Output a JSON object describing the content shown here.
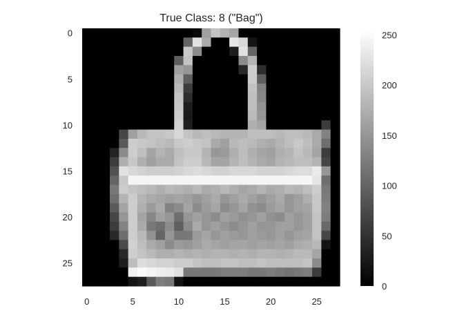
{
  "chart_data": {
    "type": "heatmap",
    "title": "True Class: 8 (\"Bag\")",
    "rows": 28,
    "cols": 28,
    "xlim": [
      -0.5,
      27.5
    ],
    "ylim": [
      27.5,
      -0.5
    ],
    "x_ticks": [
      0,
      5,
      10,
      15,
      20,
      25
    ],
    "y_ticks": [
      0,
      5,
      10,
      15,
      20,
      25
    ],
    "grid": false,
    "colormap": "gray",
    "colorbar": {
      "min": 0,
      "max": 255,
      "ticks": [
        0,
        50,
        100,
        150,
        200,
        250
      ]
    },
    "pixels": [
      [
        0,
        0,
        0,
        0,
        0,
        0,
        0,
        0,
        0,
        0,
        0,
        0,
        10,
        160,
        195,
        180,
        165,
        0,
        0,
        0,
        0,
        0,
        0,
        0,
        0,
        0,
        0,
        0
      ],
      [
        0,
        0,
        0,
        0,
        0,
        0,
        0,
        0,
        0,
        0,
        0,
        100,
        225,
        170,
        0,
        0,
        230,
        215,
        20,
        0,
        0,
        0,
        0,
        0,
        0,
        0,
        0,
        0
      ],
      [
        0,
        0,
        0,
        0,
        0,
        0,
        0,
        0,
        0,
        0,
        0,
        200,
        140,
        0,
        0,
        0,
        30,
        225,
        100,
        0,
        0,
        0,
        0,
        0,
        0,
        0,
        0,
        0
      ],
      [
        0,
        0,
        0,
        0,
        0,
        0,
        0,
        0,
        0,
        0,
        95,
        195,
        0,
        0,
        0,
        0,
        0,
        140,
        180,
        0,
        0,
        0,
        0,
        0,
        0,
        0,
        0,
        0
      ],
      [
        0,
        0,
        0,
        0,
        0,
        0,
        0,
        0,
        0,
        0,
        160,
        150,
        0,
        0,
        0,
        0,
        0,
        40,
        205,
        45,
        0,
        0,
        0,
        0,
        0,
        0,
        0,
        0
      ],
      [
        0,
        0,
        0,
        0,
        0,
        0,
        0,
        0,
        0,
        0,
        175,
        95,
        0,
        0,
        0,
        0,
        0,
        0,
        205,
        95,
        0,
        0,
        0,
        0,
        0,
        0,
        0,
        0
      ],
      [
        0,
        0,
        0,
        0,
        0,
        0,
        0,
        0,
        0,
        0,
        185,
        60,
        0,
        0,
        0,
        0,
        0,
        0,
        195,
        130,
        0,
        0,
        0,
        0,
        0,
        0,
        0,
        0
      ],
      [
        0,
        0,
        0,
        0,
        0,
        0,
        0,
        0,
        0,
        0,
        195,
        45,
        0,
        0,
        0,
        0,
        0,
        0,
        190,
        135,
        0,
        0,
        0,
        0,
        0,
        0,
        0,
        0
      ],
      [
        0,
        0,
        0,
        0,
        0,
        0,
        0,
        0,
        0,
        0,
        200,
        30,
        0,
        0,
        0,
        0,
        0,
        0,
        190,
        145,
        0,
        0,
        0,
        0,
        0,
        0,
        0,
        0
      ],
      [
        0,
        0,
        0,
        0,
        0,
        0,
        0,
        0,
        0,
        0,
        205,
        25,
        0,
        0,
        0,
        0,
        0,
        0,
        185,
        150,
        0,
        0,
        0,
        0,
        0,
        0,
        0,
        0
      ],
      [
        0,
        0,
        0,
        0,
        0,
        0,
        0,
        0,
        0,
        0,
        210,
        30,
        0,
        0,
        0,
        0,
        0,
        0,
        175,
        165,
        0,
        0,
        0,
        0,
        0,
        0,
        60,
        0
      ],
      [
        0,
        0,
        0,
        0,
        70,
        160,
        185,
        195,
        195,
        200,
        215,
        195,
        185,
        190,
        185,
        180,
        180,
        180,
        190,
        190,
        190,
        185,
        190,
        190,
        185,
        170,
        130,
        0
      ],
      [
        0,
        0,
        0,
        0,
        90,
        205,
        200,
        195,
        190,
        185,
        200,
        205,
        200,
        195,
        170,
        160,
        185,
        190,
        185,
        175,
        170,
        180,
        190,
        200,
        190,
        170,
        110,
        0
      ],
      [
        0,
        0,
        0,
        35,
        140,
        205,
        190,
        165,
        180,
        170,
        190,
        200,
        200,
        180,
        150,
        155,
        175,
        190,
        175,
        165,
        160,
        175,
        180,
        195,
        185,
        165,
        60,
        0
      ],
      [
        0,
        0,
        0,
        60,
        175,
        200,
        175,
        160,
        170,
        170,
        195,
        205,
        205,
        185,
        165,
        165,
        180,
        190,
        180,
        170,
        165,
        180,
        185,
        190,
        190,
        180,
        70,
        0
      ],
      [
        0,
        0,
        0,
        80,
        225,
        215,
        210,
        205,
        205,
        205,
        210,
        215,
        220,
        215,
        210,
        210,
        215,
        215,
        215,
        210,
        210,
        210,
        215,
        220,
        220,
        235,
        150,
        0
      ],
      [
        0,
        0,
        0,
        100,
        200,
        245,
        245,
        245,
        245,
        245,
        245,
        245,
        245,
        245,
        245,
        245,
        245,
        245,
        245,
        245,
        245,
        245,
        245,
        245,
        245,
        230,
        110,
        0
      ],
      [
        0,
        0,
        0,
        120,
        205,
        195,
        190,
        185,
        175,
        185,
        180,
        175,
        185,
        170,
        175,
        185,
        175,
        165,
        170,
        180,
        170,
        175,
        185,
        180,
        190,
        205,
        120,
        0
      ],
      [
        0,
        0,
        0,
        110,
        180,
        205,
        180,
        170,
        165,
        160,
        165,
        160,
        150,
        160,
        170,
        150,
        160,
        170,
        160,
        150,
        160,
        170,
        150,
        160,
        175,
        200,
        125,
        0
      ],
      [
        0,
        0,
        0,
        90,
        165,
        205,
        175,
        155,
        170,
        130,
        140,
        165,
        140,
        155,
        165,
        140,
        150,
        165,
        145,
        140,
        155,
        165,
        150,
        160,
        165,
        200,
        130,
        0
      ],
      [
        0,
        0,
        0,
        70,
        150,
        205,
        165,
        135,
        160,
        150,
        110,
        150,
        160,
        150,
        140,
        160,
        155,
        145,
        150,
        160,
        145,
        140,
        160,
        150,
        160,
        195,
        125,
        0
      ],
      [
        0,
        0,
        0,
        60,
        130,
        205,
        170,
        120,
        110,
        140,
        95,
        140,
        170,
        150,
        160,
        150,
        140,
        150,
        160,
        150,
        150,
        160,
        160,
        150,
        160,
        195,
        105,
        0
      ],
      [
        0,
        0,
        0,
        40,
        110,
        205,
        185,
        145,
        100,
        150,
        120,
        120,
        155,
        165,
        150,
        160,
        155,
        150,
        160,
        155,
        150,
        160,
        150,
        160,
        165,
        195,
        70,
        0
      ],
      [
        0,
        0,
        0,
        0,
        75,
        210,
        190,
        170,
        160,
        140,
        155,
        150,
        160,
        170,
        165,
        160,
        165,
        165,
        160,
        165,
        160,
        165,
        160,
        170,
        175,
        185,
        20,
        0
      ],
      [
        0,
        0,
        0,
        0,
        40,
        205,
        195,
        185,
        175,
        175,
        180,
        175,
        180,
        175,
        180,
        180,
        175,
        180,
        175,
        180,
        180,
        175,
        180,
        185,
        185,
        165,
        0,
        0
      ],
      [
        0,
        0,
        0,
        0,
        30,
        190,
        220,
        215,
        210,
        210,
        205,
        205,
        195,
        190,
        190,
        195,
        195,
        190,
        190,
        195,
        190,
        190,
        190,
        190,
        195,
        140,
        0,
        0
      ],
      [
        0,
        0,
        0,
        0,
        0,
        240,
        250,
        245,
        240,
        235,
        225,
        120,
        120,
        120,
        120,
        125,
        125,
        125,
        120,
        120,
        125,
        120,
        115,
        120,
        125,
        60,
        0,
        0
      ],
      [
        0,
        0,
        0,
        0,
        0,
        20,
        30,
        90,
        125,
        120,
        20,
        0,
        0,
        0,
        0,
        0,
        0,
        0,
        0,
        0,
        0,
        0,
        0,
        0,
        0,
        0,
        0,
        0
      ]
    ]
  }
}
